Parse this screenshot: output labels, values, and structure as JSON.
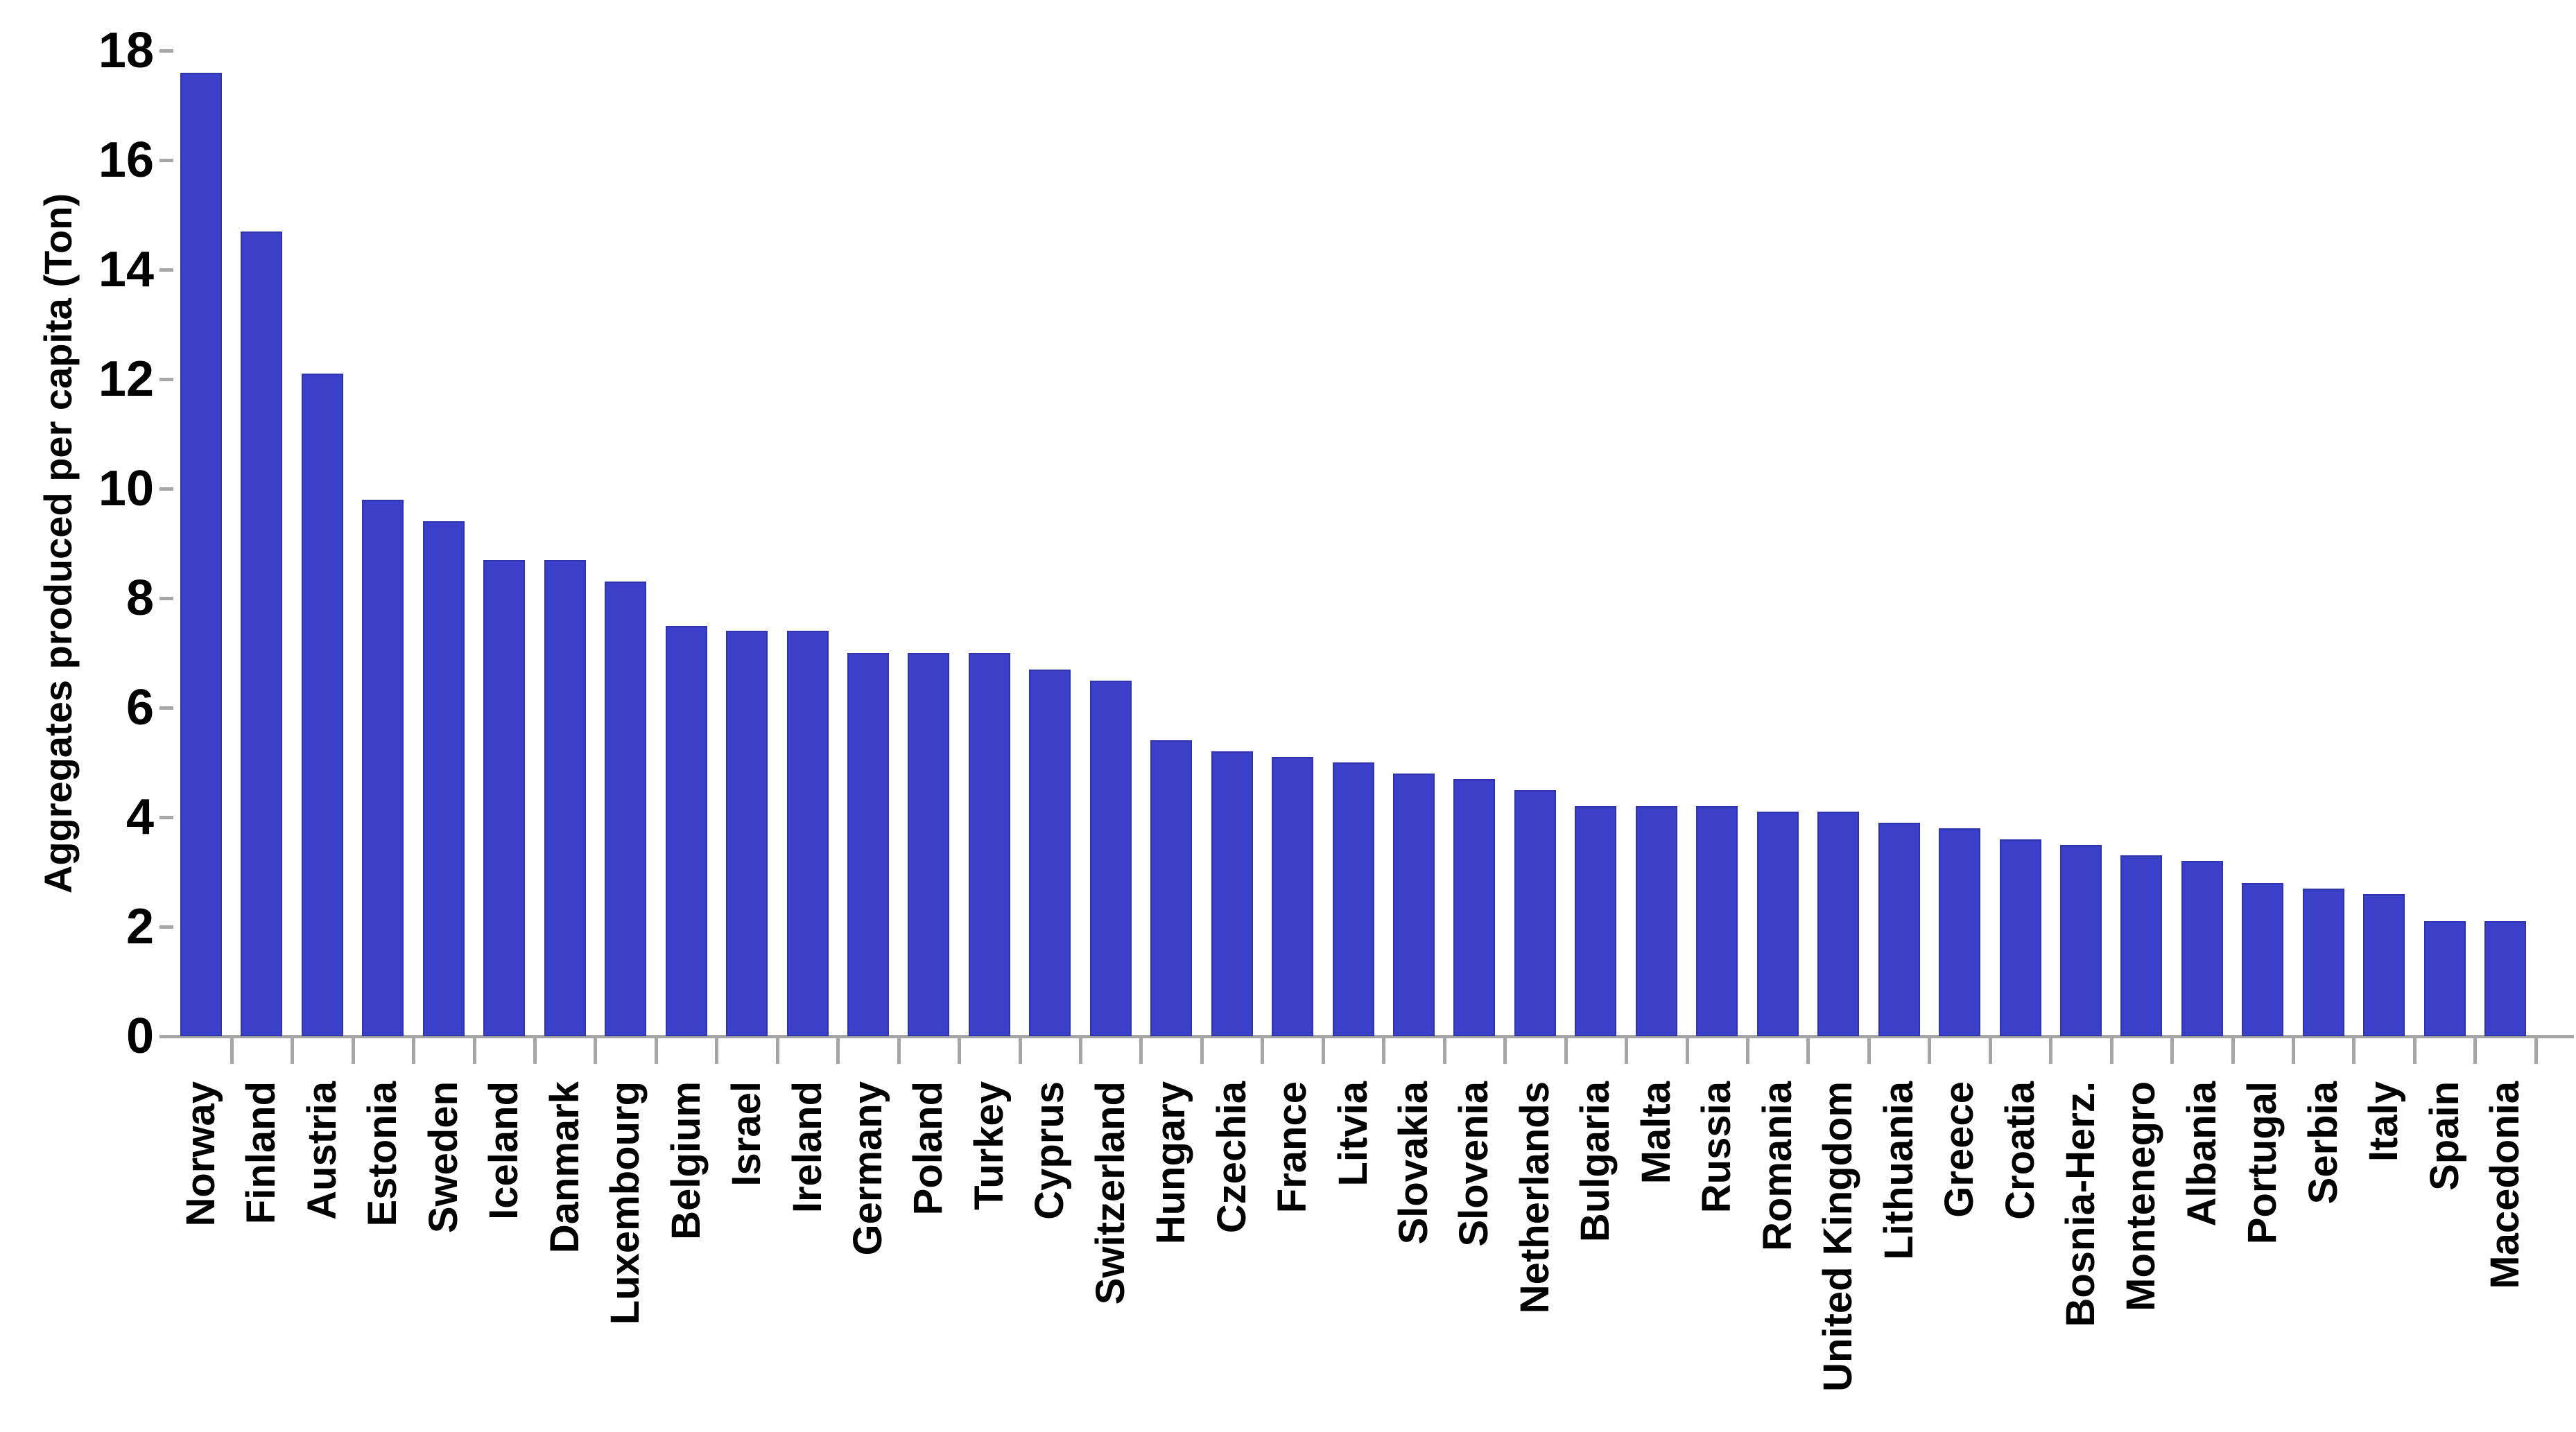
{
  "chart_data": {
    "type": "bar",
    "title": "",
    "ylabel": "Aggregates produced per capita (Ton)",
    "xlabel": "",
    "ylim": [
      0,
      18
    ],
    "yticks": [
      0,
      2,
      4,
      6,
      8,
      10,
      12,
      14,
      16,
      18
    ],
    "grid": false,
    "legend": "none",
    "bar_color": "#3a40c8",
    "axis_color": "#a6a6a6",
    "text_color": "#000000",
    "background_color": "#ffffff",
    "categories": [
      "Norway",
      "Finland",
      "Austria",
      "Estonia",
      "Sweden",
      "Iceland",
      "Danmark",
      "Luxembourg",
      "Belgium",
      "Israel",
      "Ireland",
      "Germany",
      "Poland",
      "Turkey",
      "Cyprus",
      "Switzerland",
      "Hungary",
      "Czechia",
      "France",
      "Litvia",
      "Slovakia",
      "Slovenia",
      "Netherlands",
      "Bulgaria",
      "Malta",
      "Russia",
      "Romania",
      "United Kingdom",
      "Lithuania",
      "Greece",
      "Croatia",
      "Bosnia-Herz.",
      "Montenegro",
      "Albania",
      "Portugal",
      "Serbia",
      "Italy",
      "Spain",
      "Macedonia"
    ],
    "values": [
      17.6,
      14.7,
      12.1,
      9.8,
      9.4,
      8.7,
      8.7,
      8.3,
      7.5,
      7.4,
      7.4,
      7.0,
      7.0,
      7.0,
      6.7,
      6.5,
      5.4,
      5.2,
      5.1,
      5.0,
      4.8,
      4.7,
      4.5,
      4.2,
      4.2,
      4.2,
      4.1,
      4.1,
      3.9,
      3.8,
      3.6,
      3.5,
      3.3,
      3.2,
      2.8,
      2.7,
      2.6,
      2.1,
      2.1
    ]
  }
}
